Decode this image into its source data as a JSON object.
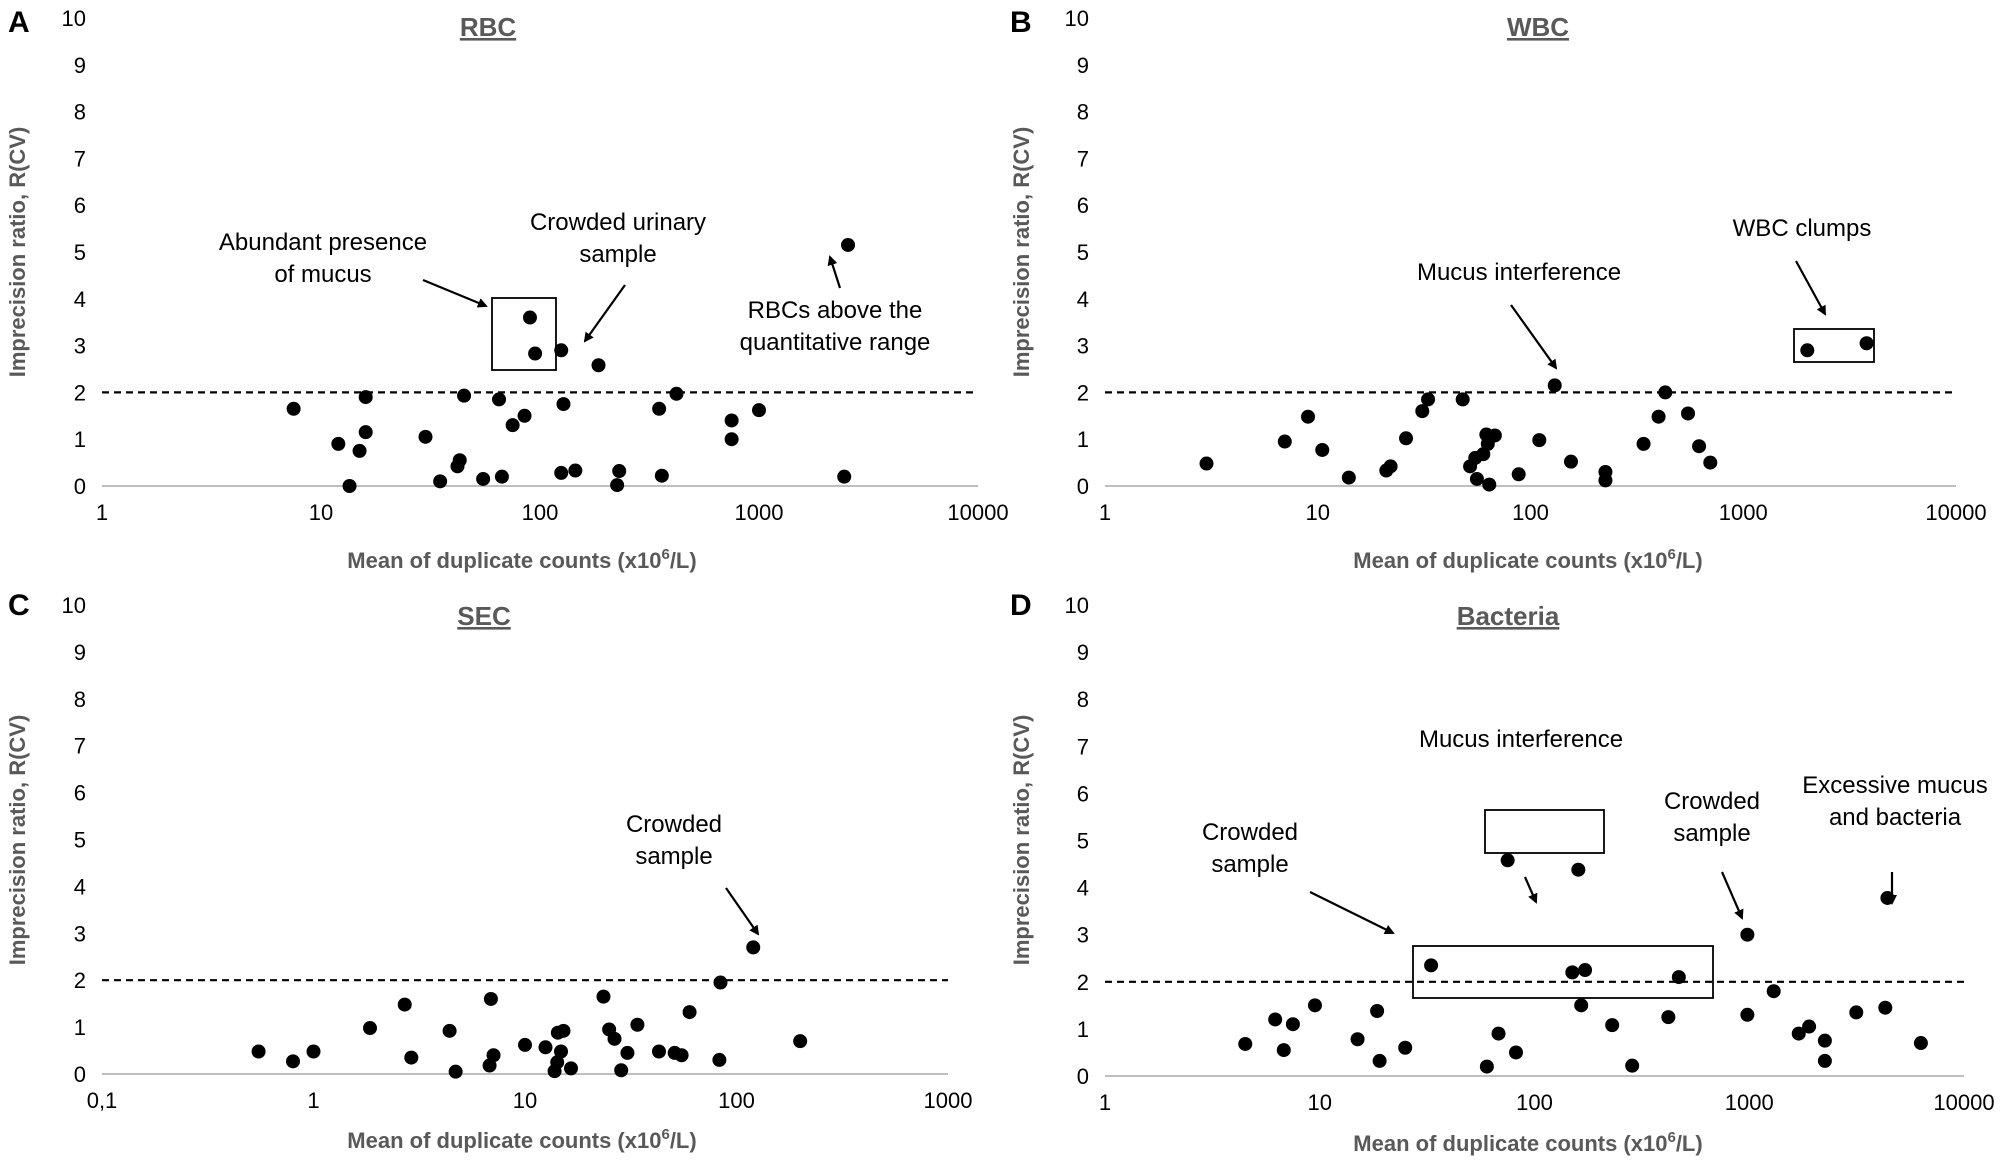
{
  "chart_data": [
    {
      "panel": "A",
      "type": "scatter",
      "title": "RBC",
      "xlabel": "Mean of duplicate counts (x10",
      "xlabel_sup": "6",
      "xlabel_tail": "/L)",
      "ylabel": "Imprecision ratio, R(CV)",
      "xscale": "log",
      "xlim": [
        1,
        10000
      ],
      "ylim": [
        0,
        10
      ],
      "xticks": [
        "1",
        "10",
        "100",
        "1000",
        "10000"
      ],
      "yticks": [
        "0",
        "1",
        "2",
        "3",
        "4",
        "5",
        "6",
        "7",
        "8",
        "9",
        "10"
      ],
      "reference_line": 2,
      "points": [
        [
          7.5,
          1.65
        ],
        [
          12,
          0.9
        ],
        [
          13.5,
          0.0
        ],
        [
          15,
          0.75
        ],
        [
          16,
          1.9
        ],
        [
          16,
          1.15
        ],
        [
          30,
          1.05
        ],
        [
          35,
          0.1
        ],
        [
          42,
          0.42
        ],
        [
          43,
          0.55
        ],
        [
          45,
          1.93
        ],
        [
          55,
          0.15
        ],
        [
          65,
          1.85
        ],
        [
          67,
          0.2
        ],
        [
          75,
          1.3
        ],
        [
          85,
          1.5
        ],
        [
          125,
          0.28
        ],
        [
          128,
          1.75
        ],
        [
          145,
          0.33
        ],
        [
          225,
          0.02
        ],
        [
          230,
          0.32
        ],
        [
          350,
          1.65
        ],
        [
          360,
          0.22
        ],
        [
          420,
          1.97
        ],
        [
          750,
          1.0
        ],
        [
          750,
          1.4
        ],
        [
          1000,
          1.62
        ],
        [
          2450,
          0.2
        ],
        [
          90,
          3.6
        ],
        [
          95,
          2.83
        ],
        [
          125,
          2.9
        ],
        [
          185,
          2.58
        ],
        [
          2550,
          5.15
        ]
      ],
      "annotations": [
        {
          "lines": [
            "Abundant presence",
            "of mucus"
          ]
        },
        {
          "lines": [
            "Crowded urinary",
            "sample"
          ]
        },
        {
          "lines": [
            "RBCs above the",
            "quantitative range"
          ]
        }
      ]
    },
    {
      "panel": "B",
      "type": "scatter",
      "title": "WBC",
      "xlabel": "Mean of duplicate counts (x10",
      "xlabel_sup": "6",
      "xlabel_tail": "/L)",
      "ylabel": "Imprecision ratio, R(CV)",
      "xscale": "log",
      "xlim": [
        1,
        10000
      ],
      "ylim": [
        0,
        10
      ],
      "xticks": [
        "1",
        "10",
        "100",
        "1000",
        "10000"
      ],
      "yticks": [
        "0",
        "1",
        "2",
        "3",
        "4",
        "5",
        "6",
        "7",
        "8",
        "9",
        "10"
      ],
      "reference_line": 2,
      "points": [
        [
          3,
          0.48
        ],
        [
          7,
          0.95
        ],
        [
          9,
          1.48
        ],
        [
          10.5,
          0.77
        ],
        [
          14,
          0.18
        ],
        [
          21,
          0.33
        ],
        [
          22,
          0.42
        ],
        [
          26,
          1.02
        ],
        [
          31,
          1.6
        ],
        [
          33,
          1.85
        ],
        [
          48,
          1.85
        ],
        [
          52,
          0.42
        ],
        [
          55,
          0.6
        ],
        [
          56,
          0.15
        ],
        [
          60,
          0.68
        ],
        [
          62,
          1.1
        ],
        [
          63,
          0.9
        ],
        [
          64,
          0.03
        ],
        [
          68,
          1.08
        ],
        [
          88,
          0.25
        ],
        [
          110,
          0.98
        ],
        [
          130,
          2.15
        ],
        [
          155,
          0.52
        ],
        [
          225,
          0.3
        ],
        [
          225,
          0.12
        ],
        [
          340,
          0.9
        ],
        [
          400,
          1.48
        ],
        [
          430,
          2.0
        ],
        [
          550,
          1.55
        ],
        [
          620,
          0.85
        ],
        [
          700,
          0.5
        ],
        [
          2000,
          2.9
        ],
        [
          3800,
          3.05
        ]
      ],
      "annotations": [
        {
          "lines": [
            "Mucus interference"
          ]
        },
        {
          "lines": [
            "WBC clumps"
          ]
        }
      ]
    },
    {
      "panel": "C",
      "type": "scatter",
      "title": "SEC",
      "xlabel": "Mean of duplicate counts (x10",
      "xlabel_sup": "6",
      "xlabel_tail": "/L)",
      "ylabel": "Imprecision ratio, R(CV)",
      "xscale": "log",
      "xlim": [
        0.1,
        1000
      ],
      "ylim": [
        0,
        10
      ],
      "xticks": [
        "0,1",
        "1",
        "10",
        "100",
        "1000"
      ],
      "yticks": [
        "0",
        "1",
        "2",
        "3",
        "4",
        "5",
        "6",
        "7",
        "8",
        "9",
        "10"
      ],
      "reference_line": 2,
      "points": [
        [
          0.55,
          0.48
        ],
        [
          0.8,
          0.27
        ],
        [
          1.0,
          0.48
        ],
        [
          1.85,
          0.98
        ],
        [
          2.7,
          1.48
        ],
        [
          2.9,
          0.35
        ],
        [
          4.4,
          0.92
        ],
        [
          4.7,
          0.05
        ],
        [
          6.8,
          0.18
        ],
        [
          6.9,
          1.6
        ],
        [
          7.1,
          0.4
        ],
        [
          10,
          0.62
        ],
        [
          12.5,
          0.57
        ],
        [
          13.8,
          0.06
        ],
        [
          14.2,
          0.25
        ],
        [
          14.3,
          0.88
        ],
        [
          14.8,
          0.48
        ],
        [
          15.2,
          0.92
        ],
        [
          16.5,
          0.12
        ],
        [
          23.5,
          1.65
        ],
        [
          25,
          0.95
        ],
        [
          26.5,
          0.75
        ],
        [
          28.5,
          0.08
        ],
        [
          30.5,
          0.45
        ],
        [
          34,
          1.05
        ],
        [
          43,
          0.48
        ],
        [
          51,
          0.45
        ],
        [
          55,
          0.4
        ],
        [
          60,
          1.32
        ],
        [
          83,
          0.3
        ],
        [
          84,
          1.95
        ],
        [
          200,
          0.7
        ],
        [
          120,
          2.7
        ]
      ],
      "annotations": [
        {
          "lines": [
            "Crowded",
            "sample"
          ]
        }
      ]
    },
    {
      "panel": "D",
      "type": "scatter",
      "title": "Bacteria",
      "xlabel": "Mean of duplicate counts (x10",
      "xlabel_sup": "6",
      "xlabel_tail": "/L)",
      "ylabel": "Imprecision ratio, R(CV)",
      "xscale": "log",
      "xlim": [
        1,
        10000
      ],
      "ylim": [
        0,
        10
      ],
      "xticks": [
        "1",
        "10",
        "100",
        "1000",
        "10000"
      ],
      "yticks": [
        "0",
        "1",
        "2",
        "3",
        "4",
        "5",
        "6",
        "7",
        "8",
        "9",
        "10"
      ],
      "reference_line": 2,
      "points": [
        [
          4.5,
          0.68
        ],
        [
          6.2,
          1.2
        ],
        [
          6.8,
          0.55
        ],
        [
          7.5,
          1.1
        ],
        [
          9.5,
          1.5
        ],
        [
          15,
          0.78
        ],
        [
          18.5,
          1.38
        ],
        [
          19,
          0.32
        ],
        [
          25,
          0.6
        ],
        [
          33,
          2.35
        ],
        [
          60,
          0.2
        ],
        [
          68,
          0.9
        ],
        [
          82,
          0.5
        ],
        [
          150,
          2.2
        ],
        [
          165,
          1.5
        ],
        [
          172,
          2.25
        ],
        [
          230,
          1.08
        ],
        [
          285,
          0.22
        ],
        [
          420,
          1.25
        ],
        [
          470,
          2.1
        ],
        [
          980,
          1.3
        ],
        [
          1300,
          1.8
        ],
        [
          1700,
          0.9
        ],
        [
          1900,
          1.05
        ],
        [
          2250,
          0.75
        ],
        [
          2250,
          0.32
        ],
        [
          3150,
          1.35
        ],
        [
          4300,
          1.45
        ],
        [
          6300,
          0.7
        ],
        [
          75,
          4.58
        ],
        [
          160,
          4.38
        ],
        [
          980,
          3.0
        ],
        [
          4400,
          3.78
        ]
      ],
      "annotations": [
        {
          "lines": [
            "Mucus interference"
          ]
        },
        {
          "lines": [
            "Crowded",
            "sample"
          ]
        },
        {
          "lines": [
            "Crowded",
            "sample"
          ]
        },
        {
          "lines": [
            "Excessive mucus",
            "and bacteria"
          ]
        }
      ]
    }
  ]
}
